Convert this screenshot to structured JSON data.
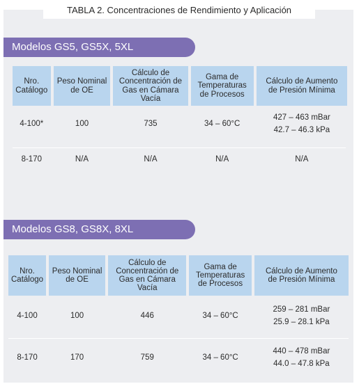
{
  "page": {
    "title": "TABLA 2. Concentraciones de Rendimiento y Aplicación"
  },
  "headers": [
    [
      "Nro.",
      "Catálogo"
    ],
    [
      "Peso Nominal",
      "de OE"
    ],
    [
      "Cálculo de",
      "Concentración de",
      "Gas en Cámara",
      "Vacía"
    ],
    [
      "Gama de",
      "Temperaturas",
      "de Procesos"
    ],
    [
      "Cálculo de Aumento",
      "de Presión Mínima"
    ]
  ],
  "sections": [
    {
      "title": "Modelos GS5, GS5X, 5XL",
      "rows": [
        {
          "catalog": "4-100*",
          "nominal": "100",
          "concentration": "735",
          "temperature": "34 – 60°C",
          "pressure": [
            "427 – 463 mBar",
            "42.7 – 46.3 kPa"
          ]
        },
        {
          "catalog": "8-170",
          "nominal": "N/A",
          "concentration": "N/A",
          "temperature": "N/A",
          "pressure": [
            "N/A"
          ]
        }
      ]
    },
    {
      "title": "Modelos GS8, GS8X, 8XL",
      "rows": [
        {
          "catalog": "4-100",
          "nominal": "100",
          "concentration": "446",
          "temperature": "34 – 60°C",
          "pressure": [
            "259 – 281 mBar",
            "25.9 – 28.1 kPa"
          ]
        },
        {
          "catalog": "8-170",
          "nominal": "170",
          "concentration": "759",
          "temperature": "34 – 60°C",
          "pressure": [
            "440 – 478 mBar",
            "44.0 – 47.8 kPa"
          ]
        }
      ]
    }
  ]
}
